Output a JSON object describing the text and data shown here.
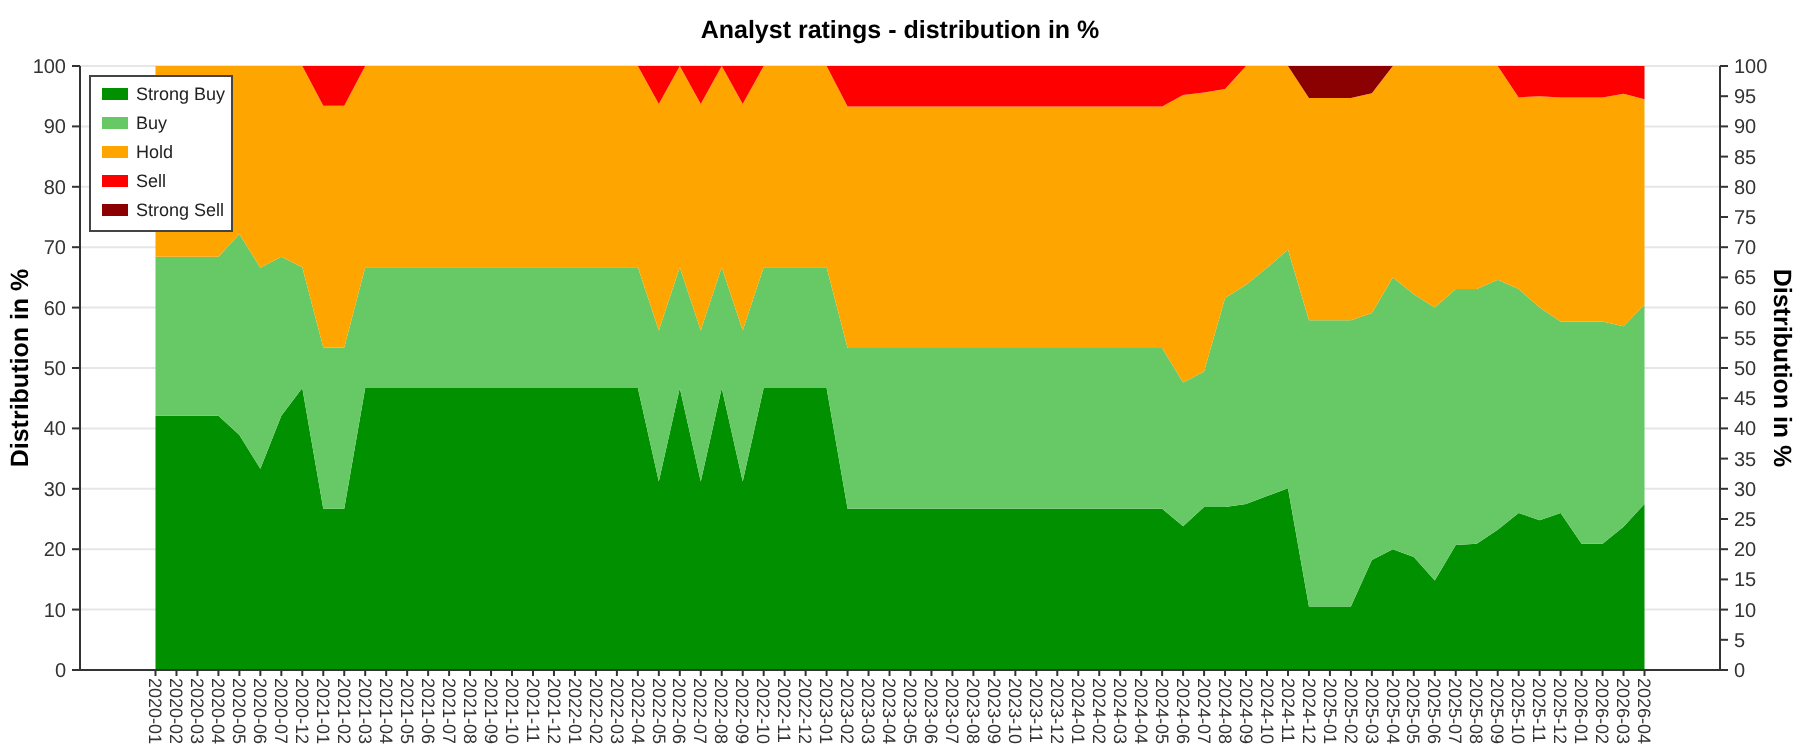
{
  "chart_data": {
    "type": "area",
    "title": "Analyst ratings - distribution in %",
    "ylabel": "Distribution in %",
    "y2label": "Distribution in %",
    "categories": [
      "2020-01",
      "2020-02",
      "2020-03",
      "2020-04",
      "2020-05",
      "2020-06",
      "2020-07",
      "2020-12",
      "2021-01",
      "2021-02",
      "2021-03",
      "2021-04",
      "2021-05",
      "2021-06",
      "2021-07",
      "2021-08",
      "2021-09",
      "2021-10",
      "2021-11",
      "2021-12",
      "2022-01",
      "2022-02",
      "2022-03",
      "2022-04",
      "2022-05",
      "2022-06",
      "2022-07",
      "2022-08",
      "2022-09",
      "2022-10",
      "2022-11",
      "2022-12",
      "2023-01",
      "2023-02",
      "2023-03",
      "2023-04",
      "2023-05",
      "2023-06",
      "2023-07",
      "2023-08",
      "2023-09",
      "2023-10",
      "2023-11",
      "2023-12",
      "2024-01",
      "2024-02",
      "2024-03",
      "2024-04",
      "2024-05",
      "2024-06",
      "2024-07",
      "2024-08",
      "2024-09",
      "2024-10",
      "2024-11",
      "2024-12",
      "2025-01",
      "2025-02",
      "2025-03",
      "2025-04",
      "2025-05",
      "2025-06",
      "2025-07",
      "2025-08",
      "2025-09",
      "2025-10",
      "2025-11",
      "2025-12",
      "2026-01",
      "2026-02",
      "2026-03",
      "2026-04"
    ],
    "stacked": true,
    "series": [
      {
        "name": "Strong Buy",
        "color": "#009000",
        "values": [
          42.1,
          42.1,
          42.1,
          42.1,
          38.9,
          33.3,
          42.1,
          46.7,
          26.7,
          26.7,
          46.7,
          46.7,
          46.7,
          46.7,
          46.7,
          46.7,
          46.7,
          46.7,
          46.7,
          46.7,
          46.7,
          46.7,
          46.7,
          46.7,
          31.2,
          46.7,
          31.2,
          46.7,
          31.2,
          46.7,
          46.7,
          46.7,
          46.7,
          26.7,
          26.7,
          26.7,
          26.7,
          26.7,
          26.7,
          26.7,
          26.7,
          26.7,
          26.7,
          26.7,
          26.7,
          26.7,
          26.7,
          26.7,
          26.7,
          23.8,
          27.0,
          27.0,
          27.5,
          28.8,
          30.1,
          10.5,
          10.5,
          10.5,
          18.2,
          20.0,
          18.7,
          14.8,
          20.7,
          20.9,
          23.2,
          26.0,
          24.8,
          26.0,
          20.9,
          20.9,
          23.7,
          27.5
        ]
      },
      {
        "name": "Buy",
        "color": "#66c966",
        "values": [
          26.3,
          26.3,
          26.3,
          26.3,
          33.3,
          33.3,
          26.3,
          20.0,
          26.7,
          26.7,
          20.0,
          20.0,
          20.0,
          20.0,
          20.0,
          20.0,
          20.0,
          20.0,
          20.0,
          20.0,
          20.0,
          20.0,
          20.0,
          20.0,
          25.0,
          20.0,
          25.0,
          20.0,
          25.0,
          20.0,
          20.0,
          20.0,
          20.0,
          26.6,
          26.6,
          26.6,
          26.6,
          26.6,
          26.6,
          26.6,
          26.6,
          26.6,
          26.6,
          26.6,
          26.6,
          26.6,
          26.6,
          26.6,
          26.6,
          23.8,
          22.4,
          34.6,
          36.3,
          37.8,
          39.5,
          47.4,
          47.4,
          47.4,
          40.9,
          45.0,
          43.5,
          45.2,
          42.4,
          42.2,
          41.4,
          37.1,
          35.2,
          31.7,
          36.8,
          36.8,
          33.2,
          33.0
        ]
      },
      {
        "name": "Hold",
        "color": "#ffa500",
        "values": [
          31.6,
          31.6,
          31.6,
          31.6,
          27.8,
          33.4,
          31.6,
          33.3,
          40.0,
          40.0,
          33.3,
          33.3,
          33.3,
          33.3,
          33.3,
          33.3,
          33.3,
          33.3,
          33.3,
          33.3,
          33.3,
          33.3,
          33.3,
          33.3,
          37.5,
          33.3,
          37.5,
          33.3,
          37.5,
          33.3,
          33.3,
          33.3,
          33.3,
          40.0,
          40.0,
          40.0,
          40.0,
          40.0,
          40.0,
          40.0,
          40.0,
          40.0,
          40.0,
          40.0,
          40.0,
          40.0,
          40.0,
          40.0,
          40.0,
          47.6,
          46.2,
          34.6,
          36.2,
          33.4,
          30.4,
          36.8,
          36.8,
          36.8,
          36.4,
          35.0,
          37.8,
          40.0,
          36.9,
          36.9,
          35.4,
          31.7,
          35.0,
          37.1,
          37.1,
          37.1,
          38.5,
          34.0
        ]
      },
      {
        "name": "Sell",
        "color": "#ff0000",
        "values": [
          0,
          0,
          0,
          0,
          0,
          0,
          0,
          0,
          6.6,
          6.6,
          0,
          0,
          0,
          0,
          0,
          0,
          0,
          0,
          0,
          0,
          0,
          0,
          0,
          0,
          6.3,
          0,
          6.3,
          0,
          6.3,
          0,
          0,
          0,
          0,
          6.7,
          6.7,
          6.7,
          6.7,
          6.7,
          6.7,
          6.7,
          6.7,
          6.7,
          6.7,
          6.7,
          6.7,
          6.7,
          6.7,
          6.7,
          6.7,
          4.8,
          4.4,
          3.8,
          0,
          0,
          0,
          0,
          0,
          0,
          0,
          0,
          0,
          0,
          0,
          0,
          0,
          5.2,
          5.0,
          5.2,
          5.2,
          5.2,
          4.6,
          5.5
        ]
      },
      {
        "name": "Strong Sell",
        "color": "#8b0000",
        "values": [
          0,
          0,
          0,
          0,
          0,
          0,
          0,
          0,
          0,
          0,
          0,
          0,
          0,
          0,
          0,
          0,
          0,
          0,
          0,
          0,
          0,
          0,
          0,
          0,
          0,
          0,
          0,
          0,
          0,
          0,
          0,
          0,
          0,
          0,
          0,
          0,
          0,
          0,
          0,
          0,
          0,
          0,
          0,
          0,
          0,
          0,
          0,
          0,
          0,
          0,
          0,
          0,
          0,
          0,
          0,
          5.3,
          5.3,
          5.3,
          4.5,
          0,
          0,
          0,
          0,
          0,
          0,
          0,
          0,
          0,
          0,
          0,
          0,
          0
        ]
      }
    ],
    "ylim": [
      0,
      100
    ],
    "yticks": [
      0,
      10,
      20,
      30,
      40,
      50,
      60,
      70,
      80,
      90,
      100
    ],
    "y2lim": [
      0,
      100
    ],
    "y2ticks": [
      0,
      5,
      10,
      15,
      20,
      25,
      30,
      35,
      40,
      45,
      50,
      55,
      60,
      65,
      70,
      75,
      80,
      85,
      90,
      95,
      100
    ],
    "grid": "y",
    "legend": "top left"
  }
}
